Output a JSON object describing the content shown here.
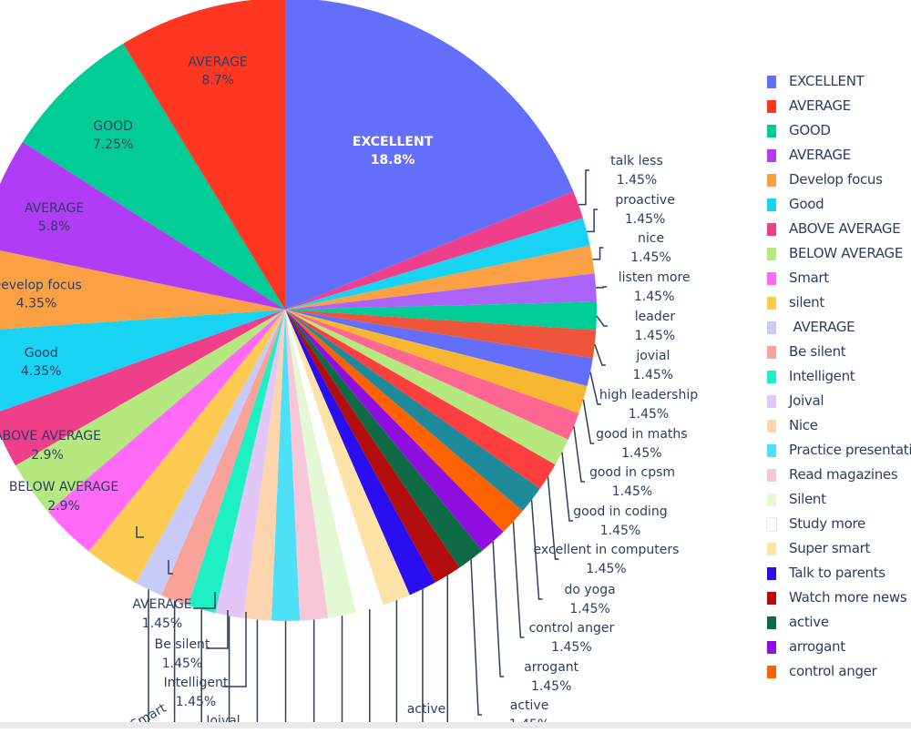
{
  "chart_data": {
    "type": "pie",
    "slices": [
      {
        "label": "EXCELLENT",
        "percent": "18.8%",
        "value": 18.8,
        "color": "#636efa"
      },
      {
        "label": "talk less",
        "percent": "1.45%",
        "value": 1.45,
        "color": "#ef3f8a"
      },
      {
        "label": "proactive",
        "percent": "1.45%",
        "value": 1.45,
        "color": "#19d3f3"
      },
      {
        "label": "nice",
        "percent": "1.45%",
        "value": 1.45,
        "color": "#fca044"
      },
      {
        "label": "listen more",
        "percent": "1.45%",
        "value": 1.45,
        "color": "#ab63fa"
      },
      {
        "label": "leader",
        "percent": "1.45%",
        "value": 1.45,
        "color": "#00cc96"
      },
      {
        "label": "jovial",
        "percent": "1.45%",
        "value": 1.45,
        "color": "#ef553b"
      },
      {
        "label": "high leadership",
        "percent": "1.45%",
        "value": 1.45,
        "color": "#636efa"
      },
      {
        "label": "good in maths",
        "percent": "1.45%",
        "value": 1.45,
        "color": "#f7b731"
      },
      {
        "label": "good in cpsm",
        "percent": "1.45%",
        "value": 1.45,
        "color": "#ff6692"
      },
      {
        "label": "good in coding",
        "percent": "1.45%",
        "value": 1.45,
        "color": "#b6e880"
      },
      {
        "label": "excellent in computers",
        "percent": "1.45%",
        "value": 1.45,
        "color": "#ff3f3f"
      },
      {
        "label": "do yoga",
        "percent": "1.45%",
        "value": 1.45,
        "color": "#1f8a99"
      },
      {
        "label": "control anger",
        "percent": "1.45%",
        "value": 1.45,
        "color": "#fe6100"
      },
      {
        "label": "arrogant",
        "percent": "1.45%",
        "value": 1.45,
        "color": "#8f0fe0"
      },
      {
        "label": "active",
        "percent": "1.45%",
        "value": 1.45,
        "color": "#0f6b45"
      },
      {
        "label": "Watch more news",
        "percent": "1.45%",
        "value": 1.45,
        "color": "#b30d0d"
      },
      {
        "label": "Talk to parents",
        "percent": "1.45%",
        "value": 1.45,
        "color": "#2a0ef0"
      },
      {
        "label": "Super smart",
        "percent": "1.45%",
        "value": 1.45,
        "color": "#fde3a7"
      },
      {
        "label": "Study more",
        "percent": "1.45%",
        "value": 1.45,
        "color": "#fdfdfb"
      },
      {
        "label": "Silent",
        "percent": "1.45%",
        "value": 1.45,
        "color": "#e3f8d4"
      },
      {
        "label": "Read magazines",
        "percent": "1.45%",
        "value": 1.45,
        "color": "#f8c6d9"
      },
      {
        "label": "Practice presentations",
        "percent": "1.45%",
        "value": 1.45,
        "color": "#4de0f7"
      },
      {
        "label": "Nice",
        "percent": "1.45%",
        "value": 1.45,
        "color": "#fcd4ae"
      },
      {
        "label": "Joival",
        "percent": "1.45%",
        "value": 1.45,
        "color": "#e2c6f7"
      },
      {
        "label": "Intelligent",
        "percent": "1.45%",
        "value": 1.45,
        "color": "#1ff0c3"
      },
      {
        "label": "Be silent",
        "percent": "1.45%",
        "value": 1.45,
        "color": "#f8a29a"
      },
      {
        "label": " AVERAGE",
        "percent": "1.45%",
        "value": 1.45,
        "color": "#c8cbf8"
      },
      {
        "label": "silent",
        "percent": "2.9%",
        "value": 2.9,
        "color": "#fecb52"
      },
      {
        "label": "Smart",
        "percent": "2.9%",
        "value": 2.9,
        "color": "#ff6af7"
      },
      {
        "label": "BELOW AVERAGE",
        "percent": "2.9%",
        "value": 2.9,
        "color": "#b6e880"
      },
      {
        "label": "ABOVE AVERAGE",
        "percent": "2.9%",
        "value": 2.9,
        "color": "#ef3f8a"
      },
      {
        "label": "Good",
        "percent": "4.35%",
        "value": 4.35,
        "color": "#19d3f3"
      },
      {
        "label": "Develop focus",
        "percent": "4.35%",
        "value": 4.35,
        "color": "#fca044"
      },
      {
        "label": "AVERAGE",
        "percent": "5.8%",
        "value": 5.8,
        "color": "#b03cf5"
      },
      {
        "label": "GOOD",
        "percent": "7.25%",
        "value": 7.25,
        "color": "#00cc96"
      },
      {
        "label": "AVERAGE",
        "percent": "8.7%",
        "value": 8.7,
        "color": "#ff3621"
      }
    ]
  },
  "legend": [
    {
      "label": "EXCELLENT",
      "color": "#636efa"
    },
    {
      "label": "AVERAGE",
      "color": "#ff3621"
    },
    {
      "label": "GOOD",
      "color": "#00cc96"
    },
    {
      "label": "AVERAGE",
      "color": "#b03cf5"
    },
    {
      "label": "Develop focus",
      "color": "#fca044"
    },
    {
      "label": "Good",
      "color": "#19d3f3"
    },
    {
      "label": "ABOVE AVERAGE",
      "color": "#ef3f8a"
    },
    {
      "label": "BELOW AVERAGE",
      "color": "#b6e880"
    },
    {
      "label": "Smart",
      "color": "#ff6af7"
    },
    {
      "label": "silent",
      "color": "#fecb52"
    },
    {
      "label": " AVERAGE",
      "color": "#c8cbf8"
    },
    {
      "label": "Be silent",
      "color": "#f8a29a"
    },
    {
      "label": "Intelligent",
      "color": "#1ff0c3"
    },
    {
      "label": "Joival",
      "color": "#e2c6f7"
    },
    {
      "label": "Nice",
      "color": "#fcd4ae"
    },
    {
      "label": "Practice presentations",
      "color": "#4de0f7"
    },
    {
      "label": "Read magazines",
      "color": "#f8c6d9"
    },
    {
      "label": "Silent",
      "color": "#e3f8d4"
    },
    {
      "label": "Study more",
      "color": "#fdfdfb"
    },
    {
      "label": "Super smart",
      "color": "#fde3a7"
    },
    {
      "label": "Talk to parents",
      "color": "#2a0ef0"
    },
    {
      "label": "Watch more news",
      "color": "#b30d0d"
    },
    {
      "label": "active",
      "color": "#0f6b45"
    },
    {
      "label": "arrogant",
      "color": "#8f0fe0"
    },
    {
      "label": "control anger",
      "color": "#fe6100"
    }
  ]
}
